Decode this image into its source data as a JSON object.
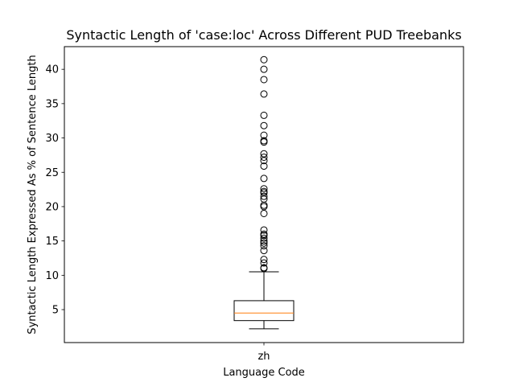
{
  "chart_data": {
    "type": "box",
    "title": "Syntactic Length of 'case:loc' Across Different PUD Treebanks",
    "xlabel": "Language Code",
    "ylabel": "Syntactic Length Expressed As % of Sentence Length",
    "categories": [
      "zh"
    ],
    "ylim": [
      0.2,
      43.3
    ],
    "yticks": [
      5,
      10,
      15,
      20,
      25,
      30,
      35,
      40
    ],
    "grid": false,
    "boxes": [
      {
        "category": "zh",
        "whisker_low": 2.2,
        "q1": 3.4,
        "median": 4.5,
        "q3": 6.3,
        "whisker_high": 10.5,
        "fliers": [
          11.0,
          11.1,
          11.8,
          12.3,
          13.6,
          14.3,
          14.7,
          15.0,
          15.4,
          15.8,
          16.0,
          16.6,
          19.0,
          20.0,
          20.2,
          21.1,
          21.5,
          22.0,
          22.2,
          22.6,
          24.1,
          25.9,
          26.7,
          27.2,
          27.7,
          29.4,
          29.6,
          30.4,
          31.8,
          33.3,
          36.4,
          38.5,
          40.0,
          41.4
        ]
      }
    ],
    "colors": {
      "box": "#000000",
      "median": "#ff7f0e",
      "flier": "#000000"
    }
  }
}
